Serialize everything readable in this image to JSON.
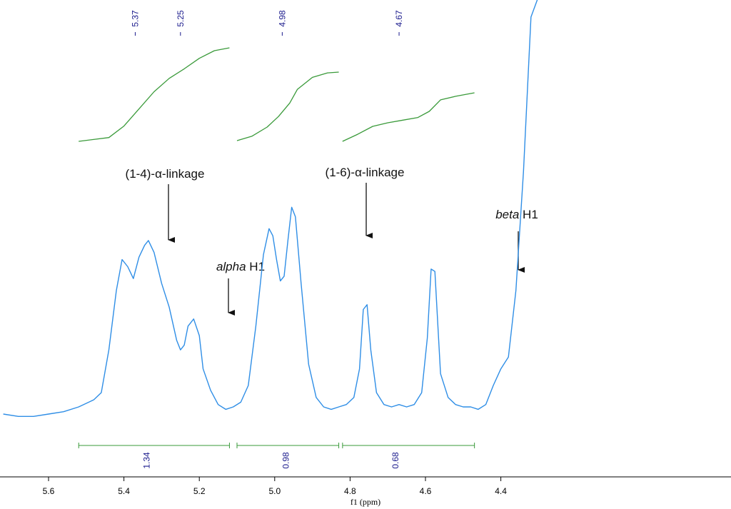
{
  "chart_data": {
    "type": "line",
    "xlabel": "f1 (ppm)",
    "x_reversed": true,
    "xlim": [
      5.72,
      4.28
    ],
    "xticks": [
      5.6,
      5.4,
      5.2,
      5.0,
      4.8,
      4.6,
      4.4
    ],
    "xtick_labels": [
      "5.6",
      "5.4",
      "5.2",
      "5.0",
      "4.8",
      "4.6",
      "4.4"
    ],
    "colors": {
      "spectrum": "#2f8ee6",
      "integral": "#3a9a3a",
      "peak_label": "#1a1a8c",
      "annotation": "#111111"
    },
    "peak_labels": [
      "5.37",
      "5.25",
      "4.98",
      "4.67"
    ],
    "peak_label_positions": [
      5.37,
      5.25,
      4.98,
      4.67
    ],
    "integrals": [
      {
        "from": 5.52,
        "to": 5.12,
        "value": "1.34",
        "center": 5.34
      },
      {
        "from": 5.1,
        "to": 4.83,
        "value": "0.98",
        "center": 4.97
      },
      {
        "from": 4.82,
        "to": 4.47,
        "value": "0.68",
        "center": 4.68
      }
    ],
    "annotations": [
      {
        "text": "(1-4)-α-linkage",
        "at": 5.37
      },
      {
        "text": "alpha H1",
        "italic_part": "alpha",
        "at": 5.25
      },
      {
        "text": "(1-6)-α-linkage",
        "at": 4.98
      },
      {
        "text": "beta H1",
        "italic_part": "beta",
        "at": 4.67
      }
    ],
    "spectrum": {
      "x": [
        5.72,
        5.68,
        5.64,
        5.6,
        5.56,
        5.52,
        5.48,
        5.46,
        5.44,
        5.42,
        5.405,
        5.39,
        5.375,
        5.36,
        5.345,
        5.335,
        5.32,
        5.3,
        5.28,
        5.26,
        5.25,
        5.24,
        5.23,
        5.215,
        5.2,
        5.19,
        5.17,
        5.15,
        5.13,
        5.11,
        5.09,
        5.07,
        5.05,
        5.03,
        5.015,
        5.005,
        4.995,
        4.985,
        4.975,
        4.965,
        4.955,
        4.945,
        4.93,
        4.91,
        4.89,
        4.87,
        4.85,
        4.83,
        4.81,
        4.79,
        4.775,
        4.765,
        4.755,
        4.745,
        4.73,
        4.71,
        4.69,
        4.67,
        4.65,
        4.63,
        4.61,
        4.595,
        4.585,
        4.575,
        4.56,
        4.54,
        4.52,
        4.5,
        4.48,
        4.46,
        4.44,
        4.42,
        4.4,
        4.38,
        4.36,
        4.34,
        4.32,
        4.3,
        4.29,
        4.28
      ],
      "y": [
        0.03,
        0.02,
        0.02,
        0.03,
        0.04,
        0.06,
        0.09,
        0.12,
        0.3,
        0.55,
        0.68,
        0.65,
        0.6,
        0.69,
        0.74,
        0.76,
        0.71,
        0.58,
        0.48,
        0.34,
        0.3,
        0.32,
        0.4,
        0.43,
        0.36,
        0.22,
        0.13,
        0.07,
        0.05,
        0.06,
        0.08,
        0.15,
        0.4,
        0.7,
        0.81,
        0.78,
        0.68,
        0.59,
        0.61,
        0.76,
        0.9,
        0.86,
        0.58,
        0.24,
        0.1,
        0.06,
        0.05,
        0.06,
        0.07,
        0.1,
        0.22,
        0.47,
        0.49,
        0.3,
        0.12,
        0.07,
        0.06,
        0.07,
        0.06,
        0.07,
        0.12,
        0.35,
        0.64,
        0.63,
        0.2,
        0.1,
        0.07,
        0.06,
        0.06,
        0.05,
        0.07,
        0.15,
        0.22,
        0.27,
        0.55,
        1.05,
        1.7,
        2.6,
        3.2,
        3.6
      ]
    },
    "integral_curves": [
      {
        "x": [
          5.52,
          5.44,
          5.4,
          5.36,
          5.32,
          5.28,
          5.24,
          5.2,
          5.16,
          5.12
        ],
        "y": [
          0.0,
          0.04,
          0.16,
          0.34,
          0.52,
          0.66,
          0.76,
          0.87,
          0.95,
          0.98
        ]
      },
      {
        "x": [
          5.1,
          5.06,
          5.02,
          4.99,
          4.96,
          4.94,
          4.9,
          4.86,
          4.83
        ],
        "y": [
          0.0,
          0.06,
          0.18,
          0.32,
          0.5,
          0.68,
          0.84,
          0.9,
          0.91
        ]
      },
      {
        "x": [
          4.82,
          4.78,
          4.74,
          4.7,
          4.66,
          4.62,
          4.59,
          4.56,
          4.52,
          4.47
        ],
        "y": [
          0.0,
          0.08,
          0.17,
          0.21,
          0.24,
          0.27,
          0.34,
          0.47,
          0.51,
          0.55
        ]
      }
    ]
  }
}
